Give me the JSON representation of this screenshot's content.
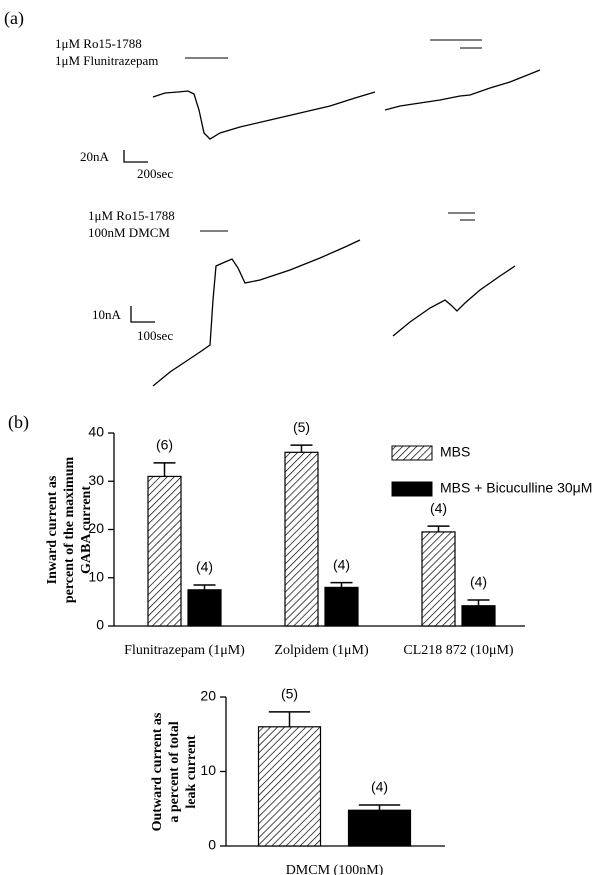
{
  "panel_a": {
    "label": "(a)",
    "top": {
      "line1": "1μM Ro15-1788",
      "line2": "1μM Flunitrazepam",
      "scale_y": "20nA",
      "scale_x": "200sec"
    },
    "bottom": {
      "line1": "1μM Ro15-1788",
      "line2": "100nM DMCM",
      "scale_y": "10nA",
      "scale_x": "100sec"
    }
  },
  "panel_b": {
    "label": "(b)"
  },
  "chart_data": [
    {
      "type": "bar",
      "ylabel": [
        "Inward current as",
        "percent of the maximum",
        "GABA current"
      ],
      "categories": [
        "Flunitrazepam (1μM)",
        "Zolpidem (1μM)",
        "CL218 872 (10μM)"
      ],
      "series": [
        {
          "name": "MBS",
          "color": "#000000",
          "hatch": true,
          "values": [
            31,
            36,
            19.5
          ],
          "errors": [
            2.8,
            1.5,
            1.2
          ],
          "labels": [
            "(6)",
            "(5)",
            "(4)"
          ]
        },
        {
          "name": "MBS + Bicuculline 30μM",
          "color": "#000000",
          "hatch": false,
          "values": [
            7.5,
            8,
            4.2
          ],
          "errors": [
            1,
            1,
            1.2
          ],
          "labels": [
            "(4)",
            "(4)",
            "(4)"
          ]
        }
      ],
      "ylim": [
        0,
        40
      ],
      "yticks": [
        0,
        10,
        20,
        30,
        40
      ],
      "legend": "upper right"
    },
    {
      "type": "bar",
      "ylabel": [
        "Outward current as",
        "a percent of total",
        "leak current"
      ],
      "categories": [
        "DMCM (100nM)"
      ],
      "series": [
        {
          "color": "#000000",
          "hatch": true,
          "values": [
            16
          ],
          "errors": [
            2
          ],
          "labels": [
            "(5)"
          ]
        },
        {
          "color": "#000000",
          "hatch": false,
          "values": [
            4.8
          ],
          "errors": [
            0.7
          ],
          "labels": [
            "(4)"
          ]
        }
      ],
      "ylim": [
        0,
        20
      ],
      "yticks": [
        0,
        10,
        20
      ]
    }
  ]
}
